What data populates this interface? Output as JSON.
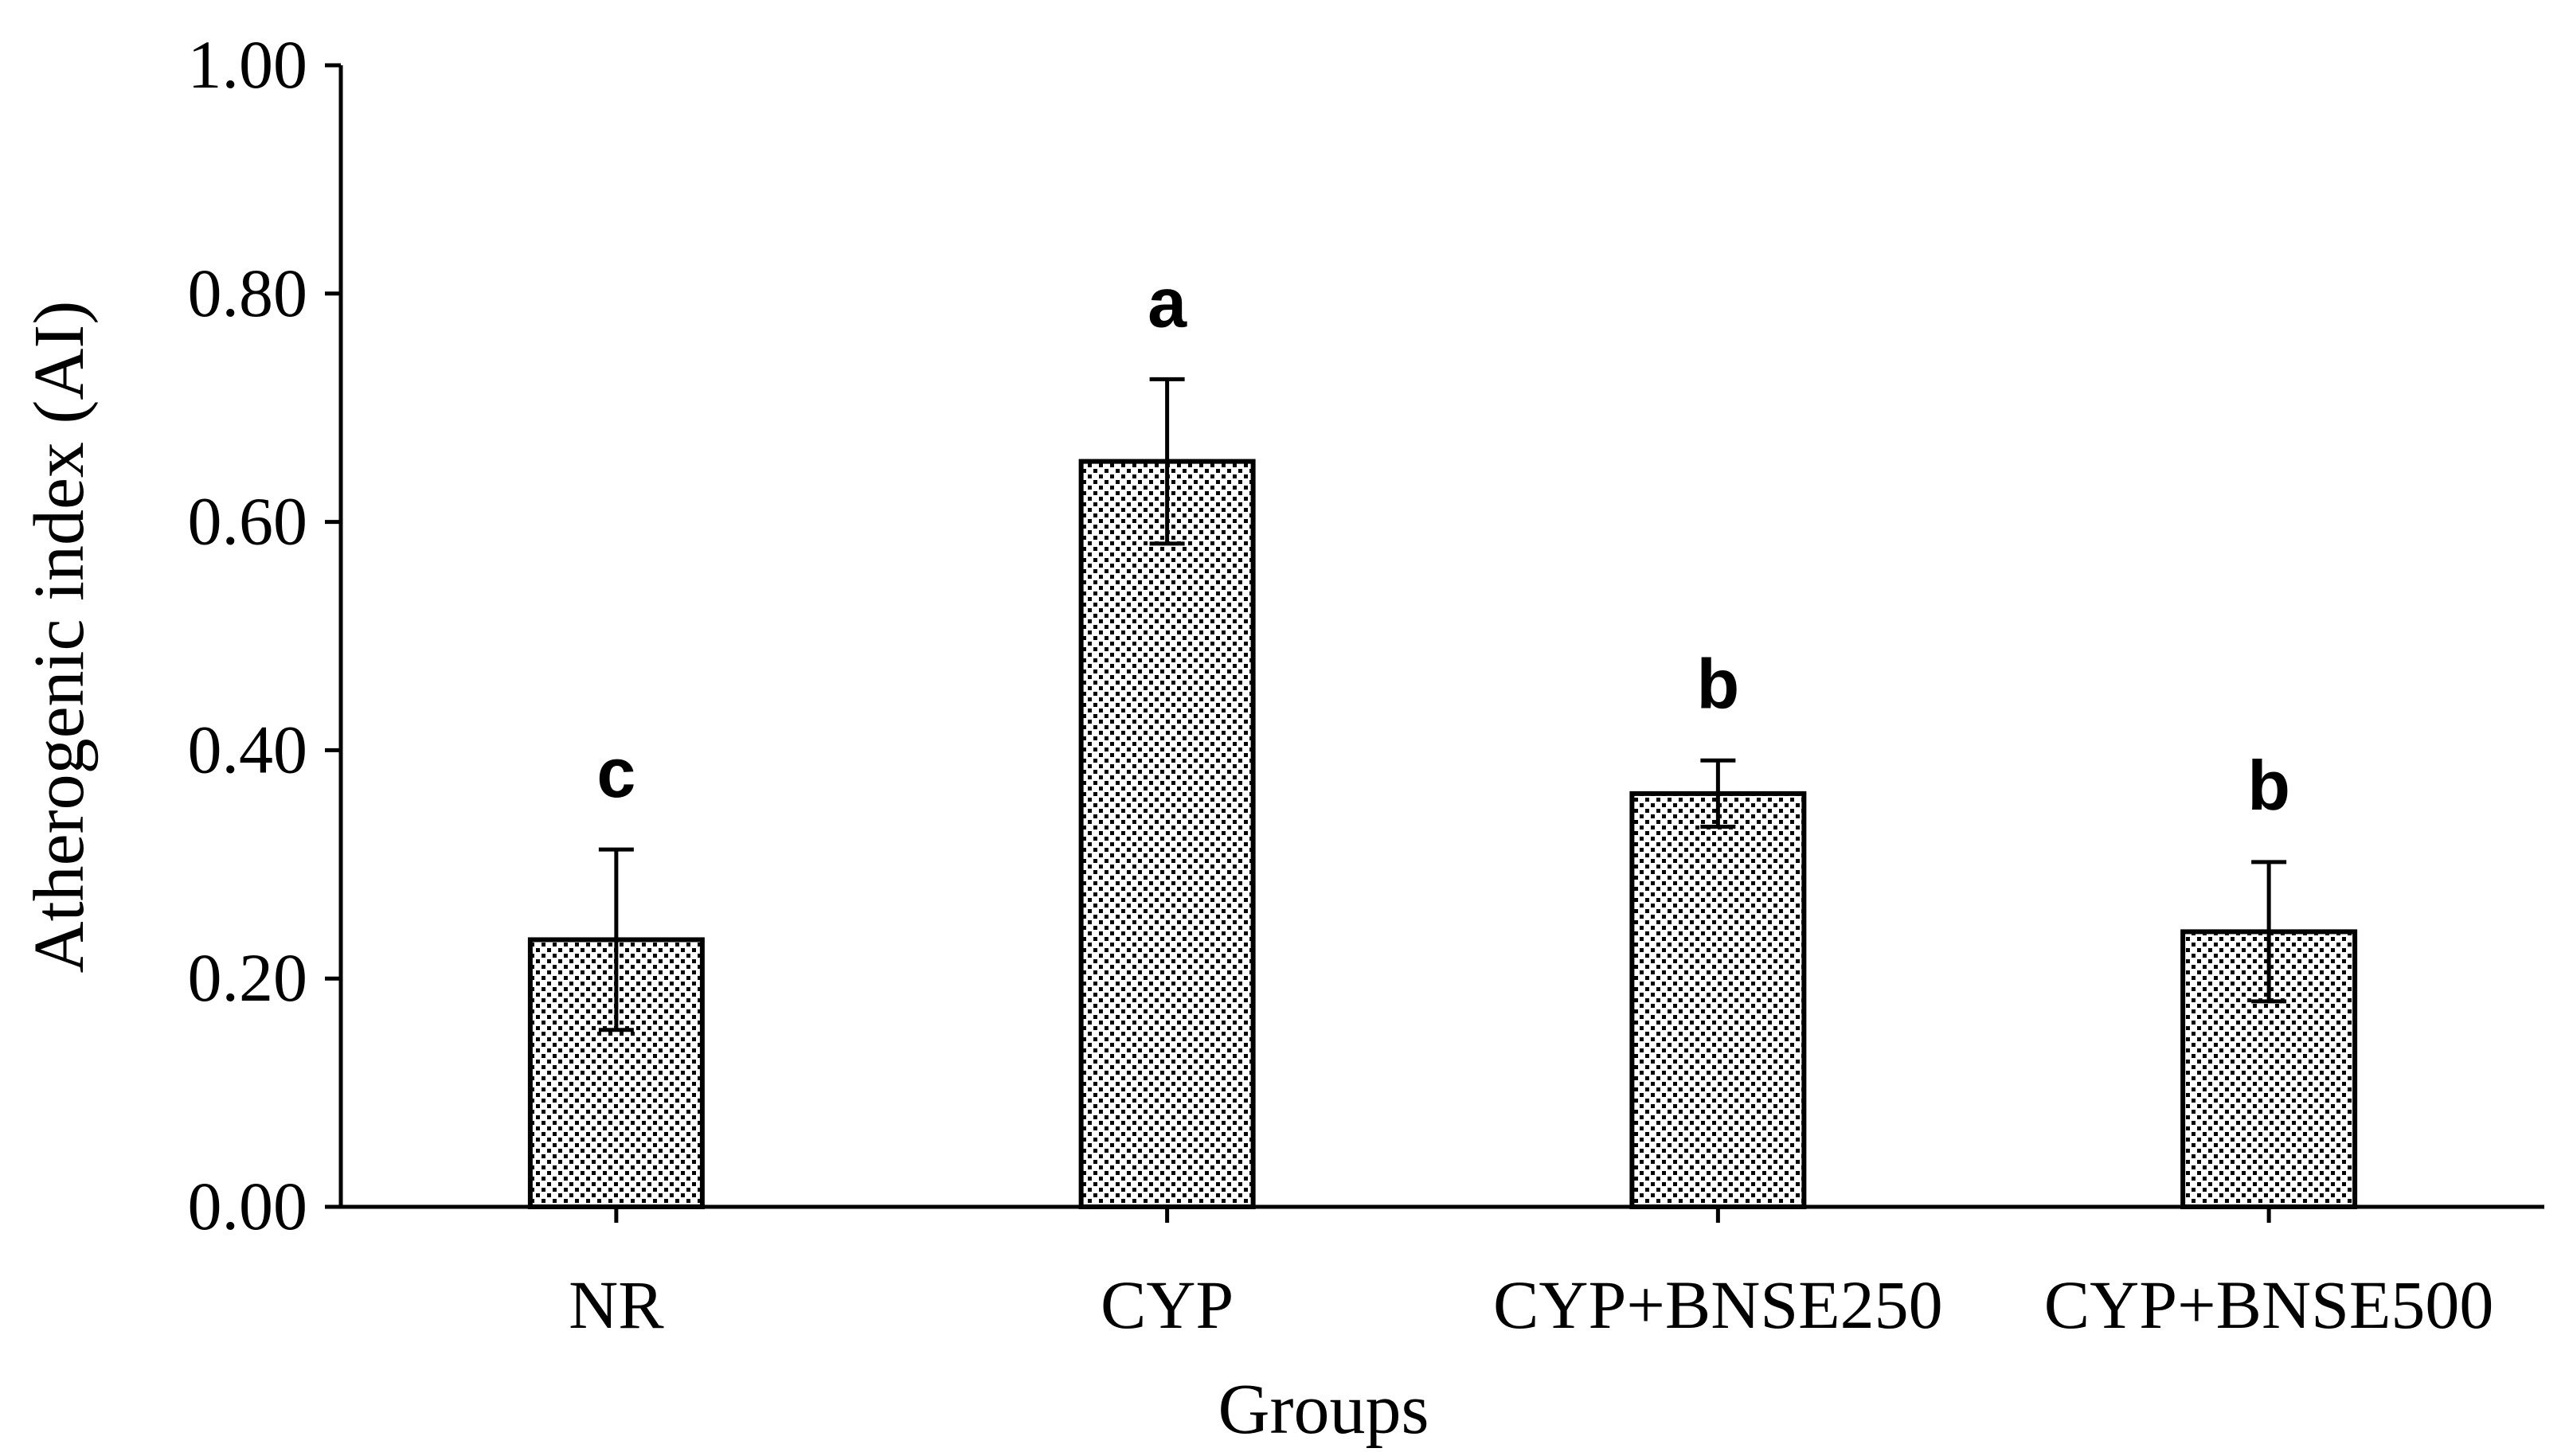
{
  "chart_data": {
    "type": "bar",
    "title": "",
    "xlabel": "Groups",
    "ylabel": "Atherogenic index (AI)",
    "ylim": [
      0,
      1
    ],
    "yticks": [
      "0.00",
      "0.20",
      "0.40",
      "0.60",
      "0.80",
      "1.00"
    ],
    "ytick_values": [
      0,
      0.2,
      0.4,
      0.6,
      0.8,
      1.0
    ],
    "categories": [
      "NR",
      "CYP",
      "CYP+BNSE250",
      "CYP+BNSE500"
    ],
    "values": [
      0.234,
      0.653,
      0.362,
      0.241
    ],
    "errors": [
      0.079,
      0.072,
      0.029,
      0.061
    ],
    "significance_labels": [
      "c",
      "a",
      "b",
      "b"
    ],
    "bar_fill": "dotted pattern",
    "colors": {
      "bar_dot": "#000000",
      "bar_background": "#ffffff",
      "axis": "#000000"
    },
    "grid": false
  }
}
